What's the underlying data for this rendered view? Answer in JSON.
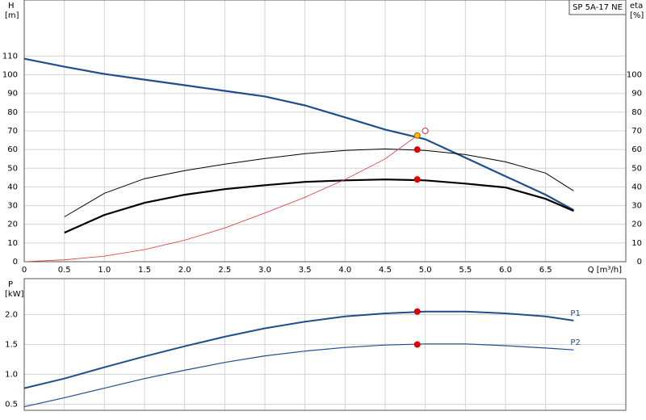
{
  "title": "SP 5A-17 NE",
  "chart_data": [
    {
      "type": "line",
      "ylabel": [
        "H",
        "[m]"
      ],
      "y2label": [
        "eta",
        "[%]"
      ],
      "xlabel": "Q [m³/h]",
      "x": [
        0,
        0.5,
        1,
        1.5,
        2,
        2.5,
        3,
        3.5,
        4,
        4.5,
        5,
        5.5,
        6,
        6.5,
        6.85
      ],
      "xlim": [
        0,
        7.5
      ],
      "xticks": [
        0,
        0.5,
        {
          "value": 1,
          "label": "1.0"
        },
        1.5,
        {
          "value": 2,
          "label": "2.0"
        },
        2.5,
        {
          "value": 3,
          "label": "3.0"
        },
        3.5,
        {
          "value": 4,
          "label": "4.0"
        },
        4.5,
        {
          "value": 5,
          "label": "5.0"
        },
        5.5,
        {
          "value": 6,
          "label": "6.0"
        },
        6.5
      ],
      "ylim": [
        0,
        140
      ],
      "yticks": [
        0,
        10,
        20,
        30,
        40,
        50,
        60,
        70,
        80,
        90,
        100,
        110
      ],
      "y2lim": [
        0,
        140
      ],
      "y2ticks": [
        0,
        10,
        20,
        30,
        40,
        50,
        60,
        70,
        80,
        90,
        100
      ],
      "grid": true,
      "series": [
        {
          "color": "#1f4e8c",
          "width": 2.2,
          "values": [
            108.6,
            104.3,
            100.4,
            97.4,
            94.4,
            91.4,
            88.4,
            83.6,
            77.2,
            70.7,
            65.5,
            55.6,
            45.7,
            35.8,
            27.6
          ]
        },
        {
          "color": "#000000",
          "width": 1,
          "axis": "y2",
          "values": [
            null,
            24,
            36.6,
            44.4,
            48.7,
            52.2,
            55.2,
            57.8,
            59.5,
            60.3,
            59.5,
            57.3,
            53.4,
            47.4,
            37.9
          ]
        },
        {
          "color": "#000000",
          "width": 2.2,
          "axis": "y2",
          "values": [
            null,
            15.5,
            25,
            31.5,
            35.8,
            38.8,
            40.9,
            42.7,
            43.5,
            44,
            43.5,
            41.8,
            39.7,
            33.6,
            27.2
          ]
        },
        {
          "color": "#e03030",
          "width": 0.8,
          "axis": "y2",
          "x": [
            0,
            0.5,
            1,
            1.5,
            2,
            2.5,
            3,
            3.5,
            4,
            4.5,
            4.9
          ],
          "values": [
            0,
            1,
            3,
            6.5,
            11.5,
            18,
            26,
            34.5,
            44,
            55,
            67.5
          ]
        }
      ],
      "markers": [
        {
          "x": 4.9,
          "y": 67.5,
          "fill": "#ffc000",
          "stroke": "#c05000"
        },
        {
          "x": 4.9,
          "y": 60,
          "fill": "#e00000",
          "stroke": "#e00000"
        },
        {
          "x": 4.9,
          "y": 44,
          "fill": "#e00000",
          "stroke": "#e00000"
        },
        {
          "x": 5.0,
          "y": 70,
          "fill": "#ffffff",
          "stroke": "#e03030"
        }
      ]
    },
    {
      "type": "line",
      "ylabel": [
        "P",
        "[kW]"
      ],
      "x": [
        0,
        0.5,
        1,
        1.5,
        2,
        2.5,
        3,
        3.5,
        4,
        4.5,
        5,
        5.5,
        6,
        6.5,
        6.85
      ],
      "xlim": [
        0,
        7.5
      ],
      "xticks": [
        0,
        0.5,
        1,
        1.5,
        2,
        2.5,
        3,
        3.5,
        4,
        4.5,
        5,
        5.5,
        6,
        6.5
      ],
      "xtick_labels": false,
      "ylim": [
        0.4,
        2.6
      ],
      "yticks": [
        0.5,
        {
          "value": 1,
          "label": "1.0"
        },
        1.5,
        {
          "value": 2,
          "label": "2.0"
        }
      ],
      "grid": true,
      "series": [
        {
          "name": "P1",
          "color": "#1f4e8c",
          "width": 2,
          "values": [
            0.77,
            0.93,
            1.12,
            1.3,
            1.47,
            1.63,
            1.77,
            1.88,
            1.97,
            2.02,
            2.05,
            2.05,
            2.02,
            1.97,
            1.9
          ]
        },
        {
          "name": "P2",
          "color": "#1f4e8c",
          "width": 1.2,
          "values": [
            0.46,
            0.61,
            0.77,
            0.93,
            1.07,
            1.2,
            1.31,
            1.39,
            1.45,
            1.49,
            1.51,
            1.51,
            1.48,
            1.44,
            1.41
          ]
        }
      ],
      "markers": [
        {
          "x": 4.9,
          "y": 2.05,
          "fill": "#e00000",
          "stroke": "#e00000"
        },
        {
          "x": 4.9,
          "y": 1.5,
          "fill": "#e00000",
          "stroke": "#e00000"
        }
      ]
    }
  ]
}
